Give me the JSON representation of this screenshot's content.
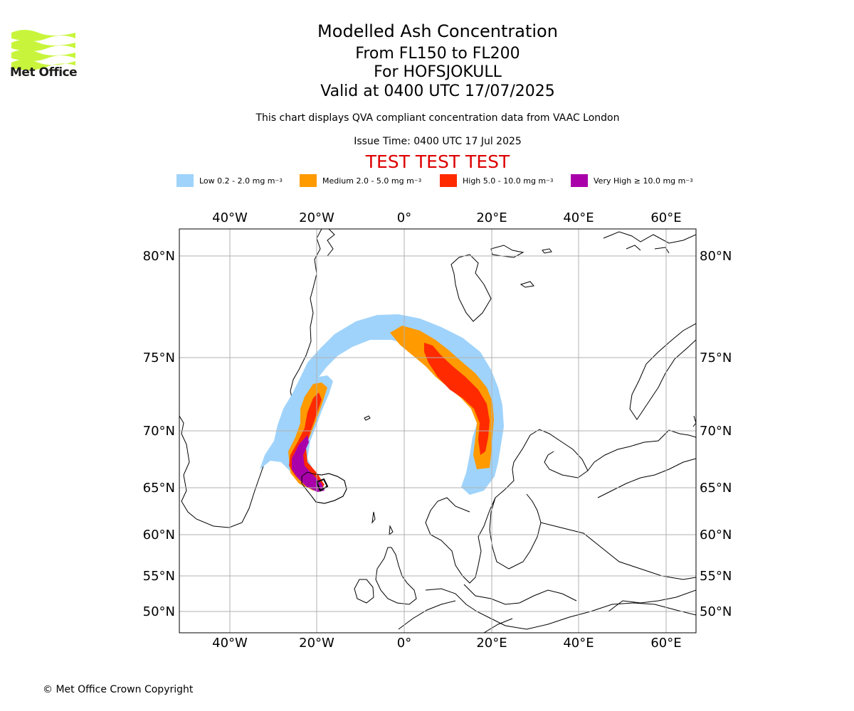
{
  "header": {
    "title": "Modelled Ash Concentration",
    "levels": "From FL150 to FL200",
    "volcano": "For HOFSJOKULL",
    "valid": "Valid at 0400 UTC 17/07/2025",
    "subtitle": "This chart displays QVA compliant concentration data from VAAC London",
    "issue": "Issue Time: 0400 UTC 17 Jul 2025",
    "test_banner": "TEST TEST TEST"
  },
  "logo": {
    "text": "Met Office",
    "color": "#c8f53c"
  },
  "legend": [
    {
      "label": "Low 0.2 - 2.0 mg m",
      "exp": "−3",
      "color": "#9fd3fb"
    },
    {
      "label": "Medium 2.0 - 5.0 mg m",
      "exp": "−3",
      "color": "#ff9a00"
    },
    {
      "label": "High 5.0 - 10.0 mg m",
      "exp": "−3",
      "color": "#ff2a00"
    },
    {
      "label": "Very High  ≥  10.0 mg m",
      "exp": "−3",
      "color": "#aa00aa"
    }
  ],
  "map": {
    "lon_ticks": [
      "40°W",
      "20°W",
      "0°",
      "20°E",
      "40°E",
      "60°E"
    ],
    "lat_ticks": [
      "80°N",
      "75°N",
      "70°N",
      "65°N",
      "60°N",
      "55°N",
      "50°N"
    ],
    "grid": true
  },
  "footer": {
    "copyright": "© Met Office Crown Copyright"
  }
}
